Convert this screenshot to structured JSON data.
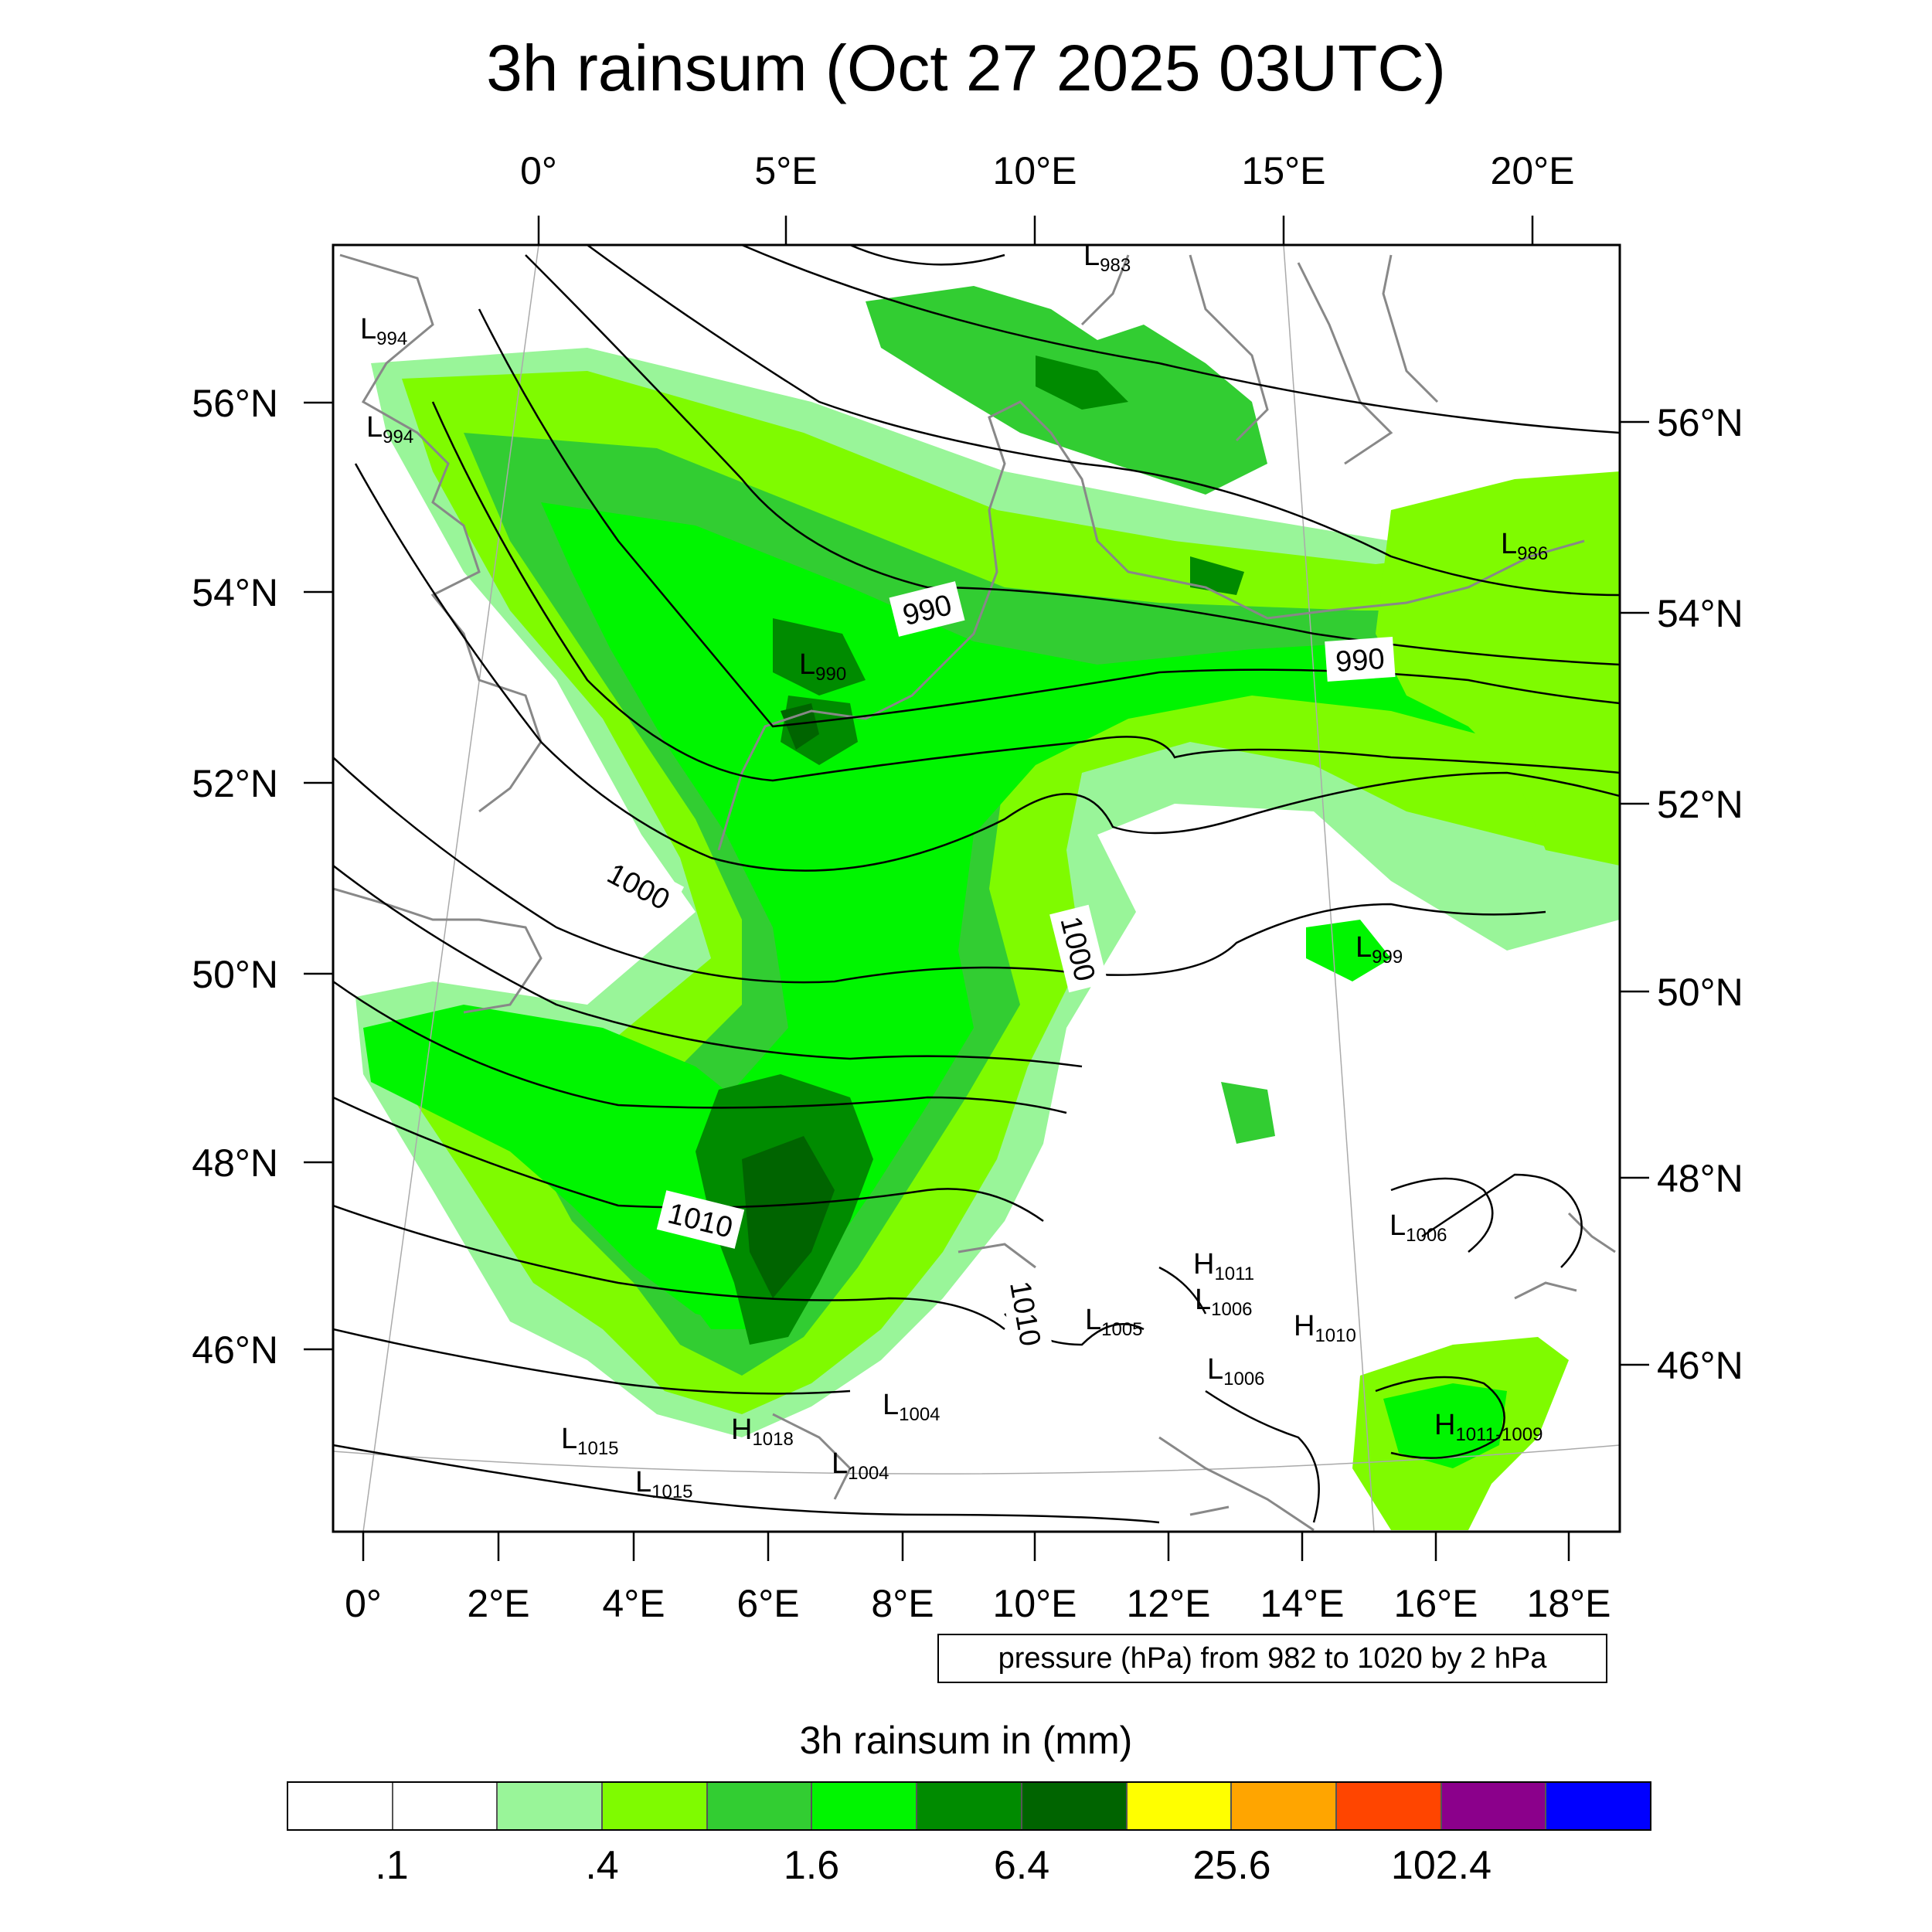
{
  "title": "3h rainsum (Oct 27 2025 03UTC)",
  "colors": {
    "frame": "#000000",
    "coast": "#888888",
    "grid": "#aaaaaa",
    "isobar": "#000000"
  },
  "top_lon_labels": [
    "0°",
    "5°E",
    "10°E",
    "15°E",
    "20°E"
  ],
  "bottom_lon_labels": [
    "0°",
    "2°E",
    "4°E",
    "6°E",
    "8°E",
    "10°E",
    "12°E",
    "14°E",
    "16°E",
    "18°E"
  ],
  "left_lat_labels": [
    "56°N",
    "54°N",
    "52°N",
    "50°N",
    "48°N",
    "46°N"
  ],
  "right_lat_labels": [
    "56°N",
    "54°N",
    "52°N",
    "50°N",
    "48°N",
    "46°N"
  ],
  "isobar_labels": [
    {
      "text": "990"
    },
    {
      "text": "990"
    },
    {
      "text": "1000"
    },
    {
      "text": "1000"
    },
    {
      "text": "1010"
    },
    {
      "text": "1010"
    }
  ],
  "pressure_centers": [
    {
      "letter": "L",
      "value": "983"
    },
    {
      "letter": "L",
      "value": "994"
    },
    {
      "letter": "L",
      "value": "994"
    },
    {
      "letter": "L",
      "value": "986"
    },
    {
      "letter": "L",
      "value": "990"
    },
    {
      "letter": "L",
      "value": "999"
    },
    {
      "letter": "L",
      "value": "1006"
    },
    {
      "letter": "H",
      "value": "1011"
    },
    {
      "letter": "L",
      "value": "1006"
    },
    {
      "letter": "H",
      "value": "1010"
    },
    {
      "letter": "L",
      "value": "1005"
    },
    {
      "letter": "L",
      "value": "1006"
    },
    {
      "letter": "L",
      "value": "1004"
    },
    {
      "letter": "H",
      "value": "1018"
    },
    {
      "letter": "L",
      "value": "1015"
    },
    {
      "letter": "L",
      "value": "1015"
    },
    {
      "letter": "L",
      "value": "1004"
    },
    {
      "letter": "H",
      "value": "1011"
    }
  ],
  "minus_1009": "-1009",
  "info_text": "pressure (hPa) from 982 to 1020 by 2 hPa",
  "colorbar": {
    "title": "3h rainsum in (mm)",
    "colors": [
      "#ffffff",
      "#ffffff",
      "#99f599",
      "#7ffb00",
      "#32cd32",
      "#00f500",
      "#008b00",
      "#006400",
      "#ffff00",
      "#ffa500",
      "#ff4500",
      "#8b008b",
      "#0000ff"
    ],
    "tick_labels": [
      ".1",
      ".4",
      "1.6",
      "6.4",
      "25.6",
      "102.4"
    ]
  }
}
